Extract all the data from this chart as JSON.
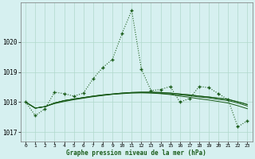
{
  "title": "Graphe pression niveau de la mer (hPa)",
  "background_color": "#d6f0f0",
  "grid_color": "#b0d8cc",
  "line_color": "#1a5c1a",
  "ylim": [
    1016.7,
    1021.3
  ],
  "yticks": [
    1017,
    1018,
    1019,
    1020
  ],
  "xlim": [
    -0.5,
    23.5
  ],
  "xticks": [
    0,
    1,
    2,
    3,
    4,
    5,
    6,
    7,
    8,
    9,
    10,
    11,
    12,
    13,
    14,
    15,
    16,
    17,
    18,
    19,
    20,
    21,
    22,
    23
  ],
  "main_series": [
    1018.0,
    1017.55,
    1017.78,
    1018.33,
    1018.28,
    1018.2,
    1018.3,
    1018.78,
    1019.15,
    1019.42,
    1020.28,
    1021.05,
    1019.1,
    1018.38,
    1018.42,
    1018.52,
    1018.0,
    1018.12,
    1018.52,
    1018.48,
    1018.28,
    1018.08,
    1017.18,
    1017.38
  ],
  "trend1": [
    1018.0,
    1017.8,
    1017.85,
    1017.95,
    1018.02,
    1018.08,
    1018.13,
    1018.18,
    1018.22,
    1018.26,
    1018.29,
    1018.31,
    1018.31,
    1018.3,
    1018.28,
    1018.25,
    1018.2,
    1018.16,
    1018.11,
    1018.07,
    1018.02,
    1017.97,
    1017.88,
    1017.78
  ],
  "trend2": [
    1018.0,
    1017.8,
    1017.85,
    1017.97,
    1018.05,
    1018.1,
    1018.15,
    1018.2,
    1018.24,
    1018.27,
    1018.3,
    1018.32,
    1018.33,
    1018.33,
    1018.32,
    1018.3,
    1018.27,
    1018.24,
    1018.2,
    1018.17,
    1018.13,
    1018.09,
    1018.01,
    1017.92
  ],
  "trend3": [
    1018.0,
    1017.8,
    1017.85,
    1017.97,
    1018.05,
    1018.1,
    1018.15,
    1018.2,
    1018.24,
    1018.27,
    1018.3,
    1018.32,
    1018.33,
    1018.33,
    1018.32,
    1018.3,
    1018.27,
    1018.24,
    1018.2,
    1018.17,
    1018.13,
    1018.09,
    1018.01,
    1017.92
  ],
  "trend4": [
    1018.0,
    1017.8,
    1017.85,
    1017.97,
    1018.05,
    1018.1,
    1018.15,
    1018.19,
    1018.23,
    1018.26,
    1018.28,
    1018.3,
    1018.31,
    1018.31,
    1018.29,
    1018.27,
    1018.24,
    1018.21,
    1018.17,
    1018.14,
    1018.09,
    1018.05,
    1017.97,
    1017.87
  ]
}
